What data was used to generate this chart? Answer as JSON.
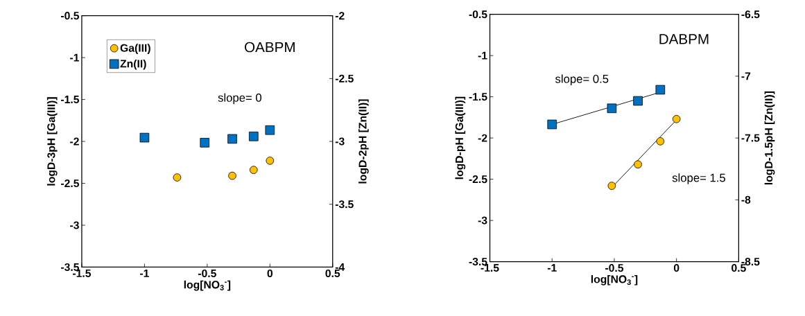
{
  "chart_data": [
    {
      "type": "scatter",
      "xlabel": "log[NO$_{3}$$^{-}$]",
      "ylabel": "logD-3pH [Ga(III)]",
      "y2label": "logD-2pH [Zn(II)]",
      "xlim": [
        -1.5,
        0.5
      ],
      "xticks": [
        -1.5,
        -1,
        -0.5,
        0,
        0.5
      ],
      "ylim": [
        -3.5,
        -0.5
      ],
      "yticks": [
        -3.5,
        -3,
        -2.5,
        -2,
        -1.5,
        -1,
        -0.5
      ],
      "y2lim": [
        -4,
        -2
      ],
      "y2ticks": [
        -4,
        -3.5,
        -3,
        -2.5,
        -2
      ],
      "legend": "top left",
      "annotations": [
        "OABPM",
        "slope= 0"
      ],
      "series": [
        {
          "name": "Ga(III)",
          "color": "#ffc000",
          "marker": "circle",
          "x": [
            -0.74,
            -0.3,
            -0.13,
            0
          ],
          "values": [
            -2.43,
            -2.41,
            -2.34,
            -2.23
          ]
        },
        {
          "name": "Zn(II)",
          "color": "#0070c0",
          "marker": "square",
          "axis": "y2",
          "x": [
            -1,
            -0.52,
            -0.3,
            -0.13,
            0
          ],
          "values": [
            -2.97,
            -3.01,
            -2.98,
            -2.96,
            -2.91
          ]
        }
      ]
    },
    {
      "type": "scatter",
      "xlabel": "log[NO$_{3}$$^{-}$]",
      "ylabel": "logD-pH [Ga(III)]",
      "y2label": "logD-1.5pH [Zn(II)]",
      "xlim": [
        -1.5,
        0.5
      ],
      "xticks": [
        -1.5,
        -1,
        -0.5,
        0,
        0.5
      ],
      "ylim": [
        -3.5,
        -0.5
      ],
      "yticks": [
        -3.5,
        -3,
        -2.5,
        -2,
        -1.5,
        -1,
        -0.5
      ],
      "y2lim": [
        -8.5,
        -6.5
      ],
      "y2ticks": [
        -8.5,
        -8,
        -7.5,
        -7,
        -6.5
      ],
      "annotations": [
        "DABPM",
        "slope= 0.5",
        "slope= 1.5"
      ],
      "series": [
        {
          "type": "line",
          "color": "#000000",
          "marker": "none",
          "x": [
            -0.52,
            0
          ],
          "values": [
            -2.6,
            -1.78
          ]
        },
        {
          "type": "line",
          "color": "#000000",
          "marker": "none",
          "axis": "y2",
          "x": [
            -1,
            -0.13
          ],
          "values": [
            -7.39,
            -7.13
          ]
        },
        {
          "color": "#ffc000",
          "marker": "circle",
          "x": [
            -0.52,
            -0.31,
            -0.13,
            0
          ],
          "values": [
            -2.58,
            -2.32,
            -2.04,
            -1.77
          ]
        },
        {
          "color": "#0070c0",
          "marker": "square",
          "axis": "y2",
          "x": [
            -1,
            -0.52,
            -0.31,
            -0.13
          ],
          "values": [
            -7.39,
            -7.26,
            -7.2,
            -7.11
          ]
        }
      ]
    }
  ]
}
